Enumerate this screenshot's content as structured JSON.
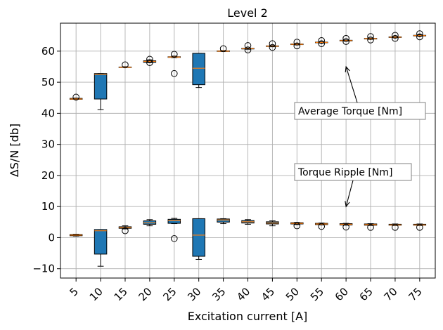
{
  "chart_data": {
    "type": "box",
    "title": "Level 2",
    "xlabel": "Excitation current [A]",
    "ylabel": "ΔS/N [db]",
    "x_ticks": [
      "5",
      "10",
      "15",
      "20",
      "25",
      "30",
      "35",
      "40",
      "45",
      "50",
      "55",
      "60",
      "65",
      "70",
      "75"
    ],
    "y_ticks": [
      "−10",
      "0",
      "10",
      "20",
      "30",
      "40",
      "50",
      "60"
    ],
    "ylim": [
      -13,
      69
    ],
    "grid": true,
    "box_color": "#1f77b4",
    "median_color": "#ff7f0e",
    "series": [
      {
        "annotation": "Average Torque [Nm]",
        "arrow_to": {
          "x": "60",
          "y": 55
        },
        "boxes": [
          {
            "x": "5",
            "whislo": 44.5,
            "q1": 44.5,
            "med": 44.6,
            "q3": 44.8,
            "whishi": 44.9,
            "fliers": [
              45.2
            ]
          },
          {
            "x": "10",
            "whislo": 41.2,
            "q1": 44.6,
            "med": 52.5,
            "q3": 52.8,
            "whishi": 52.8,
            "fliers": []
          },
          {
            "x": "15",
            "whislo": 54.8,
            "q1": 54.8,
            "med": 54.8,
            "q3": 54.9,
            "whishi": 55.0,
            "fliers": [
              55.6
            ]
          },
          {
            "x": "20",
            "whislo": 56.3,
            "q1": 56.4,
            "med": 56.7,
            "q3": 56.9,
            "whishi": 57.2,
            "fliers": [
              56.3,
              57.4
            ]
          },
          {
            "x": "25",
            "whislo": 57.9,
            "q1": 58.0,
            "med": 58.1,
            "q3": 58.2,
            "whishi": 58.4,
            "fliers": [
              52.8,
              59.0
            ]
          },
          {
            "x": "30",
            "whislo": 48.3,
            "q1": 49.2,
            "med": 54.5,
            "q3": 59.3,
            "whishi": 59.3,
            "fliers": []
          },
          {
            "x": "35",
            "whislo": 59.9,
            "q1": 59.9,
            "med": 60.0,
            "q3": 60.1,
            "whishi": 60.2,
            "fliers": [
              60.8
            ]
          },
          {
            "x": "40",
            "whislo": 60.6,
            "q1": 60.7,
            "med": 60.8,
            "q3": 60.9,
            "whishi": 61.0,
            "fliers": [
              60.4,
              61.8
            ]
          },
          {
            "x": "45",
            "whislo": 61.4,
            "q1": 61.5,
            "med": 61.6,
            "q3": 61.7,
            "whishi": 61.8,
            "fliers": [
              61.2,
              62.4
            ]
          },
          {
            "x": "50",
            "whislo": 62.0,
            "q1": 62.1,
            "med": 62.2,
            "q3": 62.3,
            "whishi": 62.4,
            "fliers": [
              61.7,
              62.9
            ]
          },
          {
            "x": "55",
            "whislo": 62.6,
            "q1": 62.7,
            "med": 62.8,
            "q3": 62.9,
            "whishi": 63.0,
            "fliers": [
              62.4,
              63.4
            ]
          },
          {
            "x": "60",
            "whislo": 63.2,
            "q1": 63.3,
            "med": 63.4,
            "q3": 63.5,
            "whishi": 63.6,
            "fliers": [
              63.1,
              64.1
            ]
          },
          {
            "x": "65",
            "whislo": 63.8,
            "q1": 63.9,
            "med": 64.0,
            "q3": 64.1,
            "whishi": 64.2,
            "fliers": [
              63.6,
              64.7
            ]
          },
          {
            "x": "70",
            "whislo": 64.3,
            "q1": 64.4,
            "med": 64.5,
            "q3": 64.6,
            "whishi": 64.7,
            "fliers": [
              64.1,
              65.1
            ]
          },
          {
            "x": "75",
            "whislo": 64.8,
            "q1": 64.9,
            "med": 65.0,
            "q3": 65.1,
            "whishi": 65.3,
            "fliers": [
              64.6,
              65.6
            ]
          }
        ]
      },
      {
        "annotation": "Torque Ripple [Nm]",
        "arrow_to": {
          "x": "60",
          "y": 10
        },
        "boxes": [
          {
            "x": "5",
            "whislo": 0.5,
            "q1": 0.6,
            "med": 0.8,
            "q3": 1.0,
            "whishi": 1.1,
            "fliers": []
          },
          {
            "x": "10",
            "whislo": -9.2,
            "q1": -5.3,
            "med": 2.2,
            "q3": 2.6,
            "whishi": 2.6,
            "fliers": []
          },
          {
            "x": "15",
            "whislo": 2.8,
            "q1": 3.0,
            "med": 3.2,
            "q3": 3.5,
            "whishi": 3.8,
            "fliers": [
              2.2
            ]
          },
          {
            "x": "20",
            "whislo": 3.8,
            "q1": 4.3,
            "med": 4.8,
            "q3": 5.4,
            "whishi": 5.8,
            "fliers": []
          },
          {
            "x": "25",
            "whislo": 4.5,
            "q1": 4.6,
            "med": 5.5,
            "q3": 5.9,
            "whishi": 6.2,
            "fliers": [
              -0.3
            ]
          },
          {
            "x": "30",
            "whislo": -7.0,
            "q1": -6.0,
            "med": 0.8,
            "q3": 6.1,
            "whishi": 6.1,
            "fliers": []
          },
          {
            "x": "35",
            "whislo": 4.5,
            "q1": 5.0,
            "med": 5.7,
            "q3": 6.0,
            "whishi": 6.1,
            "fliers": []
          },
          {
            "x": "40",
            "whislo": 4.3,
            "q1": 4.7,
            "med": 5.1,
            "q3": 5.5,
            "whishi": 5.8,
            "fliers": []
          },
          {
            "x": "45",
            "whislo": 3.8,
            "q1": 4.4,
            "med": 4.7,
            "q3": 5.1,
            "whishi": 5.4,
            "fliers": []
          },
          {
            "x": "50",
            "whislo": 4.2,
            "q1": 4.4,
            "med": 4.6,
            "q3": 4.8,
            "whishi": 4.9,
            "fliers": [
              3.8
            ]
          },
          {
            "x": "55",
            "whislo": 4.1,
            "q1": 4.2,
            "med": 4.4,
            "q3": 4.6,
            "whishi": 4.7,
            "fliers": [
              3.6
            ]
          },
          {
            "x": "60",
            "whislo": 4.0,
            "q1": 4.1,
            "med": 4.3,
            "q3": 4.5,
            "whishi": 4.6,
            "fliers": [
              3.4
            ]
          },
          {
            "x": "65",
            "whislo": 3.9,
            "q1": 4.0,
            "med": 4.2,
            "q3": 4.4,
            "whishi": 4.5,
            "fliers": [
              3.3
            ]
          },
          {
            "x": "70",
            "whislo": 3.9,
            "q1": 4.0,
            "med": 4.1,
            "q3": 4.3,
            "whishi": 4.4,
            "fliers": [
              3.3
            ]
          },
          {
            "x": "75",
            "whislo": 3.9,
            "q1": 4.0,
            "med": 4.1,
            "q3": 4.3,
            "whishi": 4.4,
            "fliers": [
              3.3
            ]
          }
        ]
      }
    ]
  }
}
